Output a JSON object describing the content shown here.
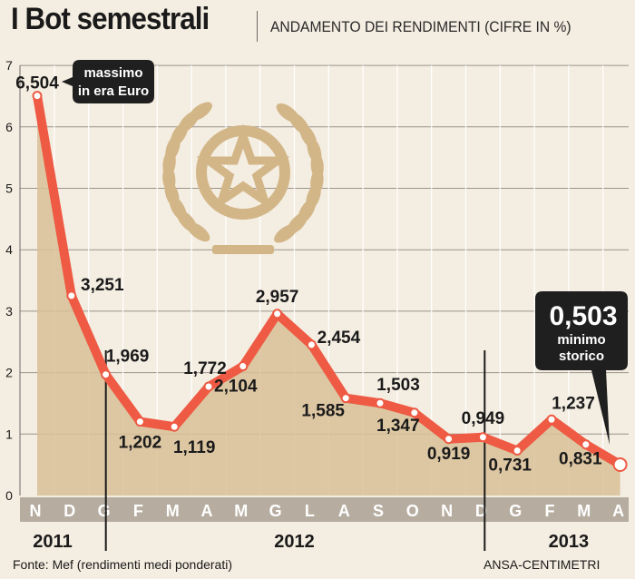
{
  "header": {
    "title": "I Bot semestrali",
    "subtitle": "ANDAMENTO DEI RENDIMENTI (CIFRE IN %)"
  },
  "footer": {
    "source": "Fonte: Mef (rendimenti medi ponderati)",
    "credit": "ANSA-CENTIMETRI"
  },
  "colors": {
    "background": "#f4ede1",
    "area_fill": "#d8bf98",
    "line": "#ee5a43",
    "axis_band": "#b6ada0",
    "month_label": "#ffffff",
    "callout_bg": "#1f1f1f",
    "emblem": "#d2b688"
  },
  "annotations": {
    "max": {
      "line1": "massimo",
      "line2": "in era Euro"
    },
    "min": {
      "value": "0,503",
      "line1": "minimo",
      "line2": "storico"
    }
  },
  "emblem": {
    "icon": "stella-d-italia-emblem"
  },
  "chart_data": {
    "type": "area",
    "title": "I Bot semestrali",
    "subtitle": "ANDAMENTO DEI RENDIMENTI (CIFRE IN %)",
    "x_labels": [
      "N",
      "D",
      "G",
      "F",
      "M",
      "A",
      "M",
      "G",
      "L",
      "A",
      "S",
      "O",
      "N",
      "D",
      "G",
      "F",
      "M",
      "A"
    ],
    "year_labels": [
      "2011",
      "2012",
      "2013"
    ],
    "ylim": [
      0,
      7
    ],
    "yticks": [
      0,
      1,
      2,
      3,
      4,
      5,
      6,
      7
    ],
    "grid": true,
    "series": [
      {
        "values": [
          6.504,
          3.251,
          1.969,
          1.202,
          1.119,
          1.772,
          2.104,
          2.957,
          2.454,
          1.585,
          1.503,
          1.347,
          0.919,
          0.949,
          0.731,
          1.237,
          0.831,
          0.503
        ],
        "labels": [
          "6,504",
          "3,251",
          "1,969",
          "1,202",
          "1,119",
          "1,772",
          "2,104",
          "2,957",
          "2,454",
          "1,585",
          "1,503",
          "1,347",
          "0,919",
          "0,949",
          "0,731",
          "1,237",
          "0,831",
          ""
        ]
      }
    ]
  }
}
